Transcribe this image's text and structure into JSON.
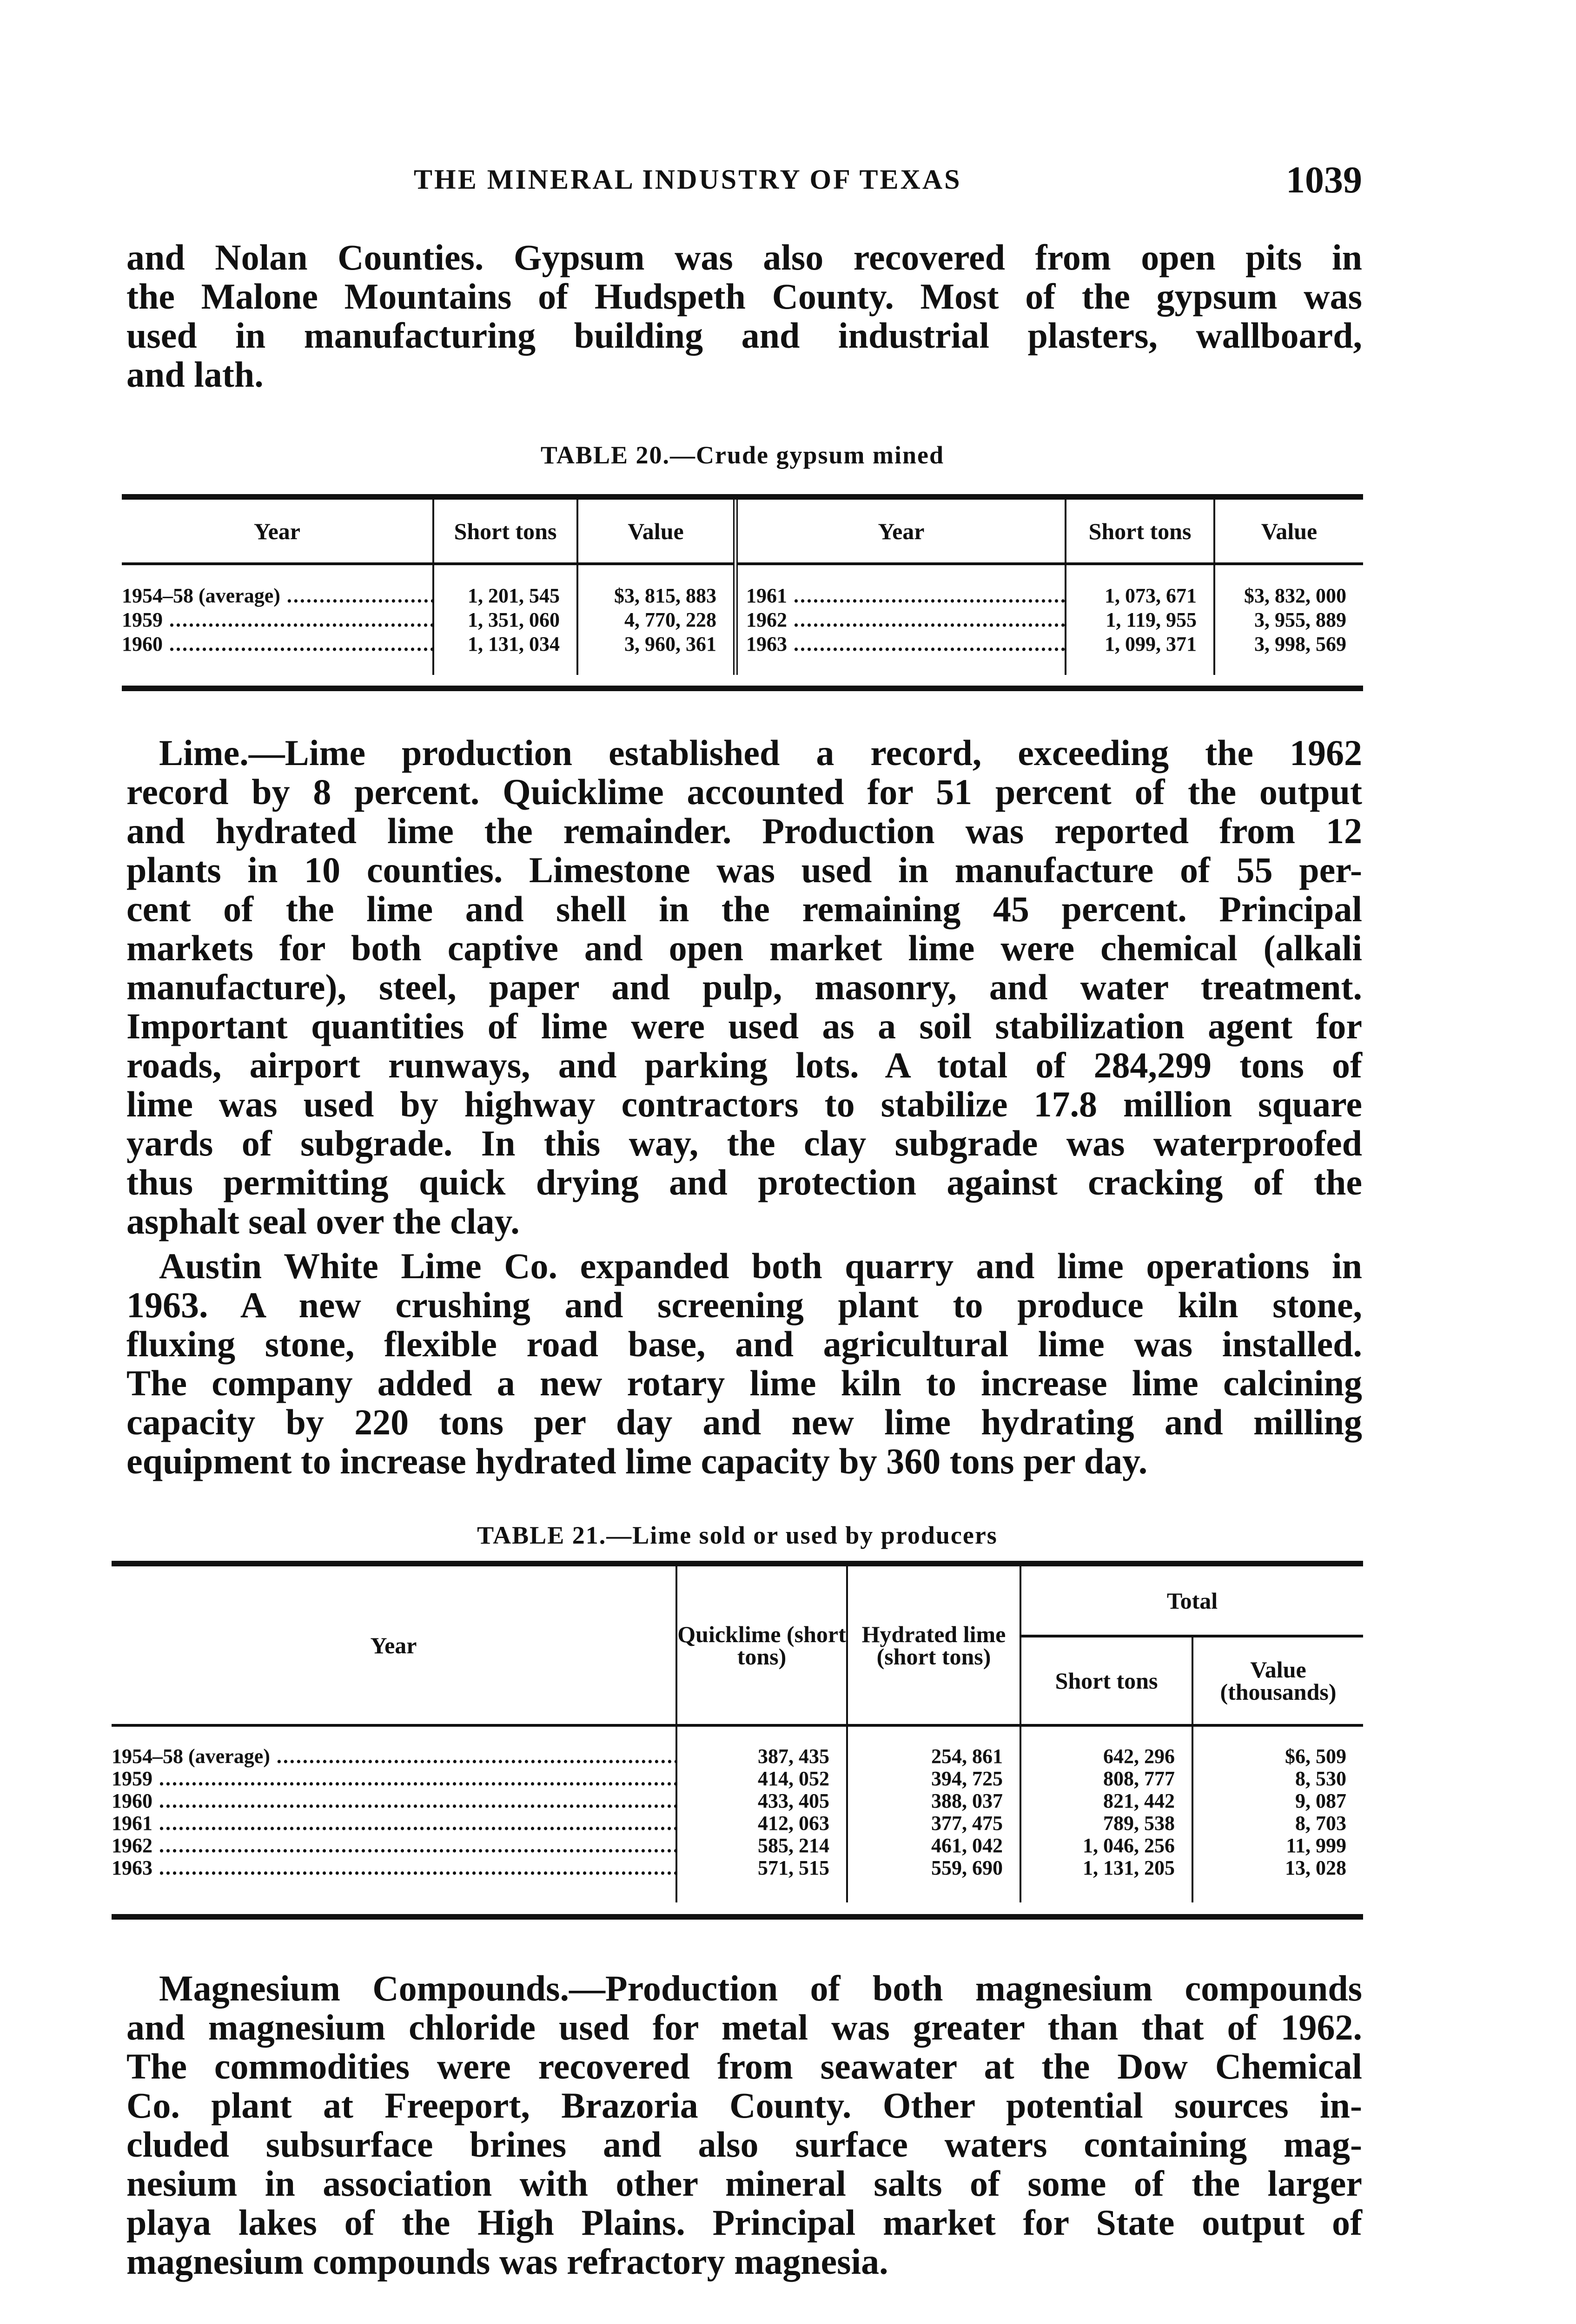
{
  "header": {
    "running_title": "THE MINERAL INDUSTRY OF TEXAS",
    "page_number": "1039"
  },
  "paragraphs": {
    "gypsum_end": {
      "lead": "",
      "lines": [
        "and Nolan Counties. Gypsum was also recovered from open pits in",
        "the Malone Mountains of Hudspeth County. Most of the gypsum was",
        "used in manufacturing building and industrial plasters, wallboard,",
        "and lath."
      ]
    },
    "lime": {
      "lead": "Lime.",
      "lines": [
        "—Lime production established a record, exceeding the 1962",
        "record by 8 percent. Quicklime accounted for 51 percent of the output",
        "and hydrated lime the remainder. Production was reported from 12",
        "plants in 10 counties. Limestone was used in manufacture of 55 per-",
        "cent of the lime and shell in the remaining 45 percent. Principal",
        "markets for both captive and open market lime were chemical (alkali",
        "manufacture), steel, paper and pulp, masonry, and water treatment.",
        "Important quantities of lime were used as a soil stabilization agent for",
        "roads, airport runways, and parking lots. A total of 284,299 tons of",
        "lime was used by highway contractors to stabilize 17.8 million square",
        "yards of subgrade. In this way, the clay subgrade was waterproofed",
        "thus permitting quick drying and protection against cracking of the",
        "asphalt seal over the clay."
      ]
    },
    "austin": {
      "lead": "",
      "lines": [
        "Austin White Lime Co. expanded both quarry and lime operations in",
        "1963. A new crushing and screening plant to produce kiln stone,",
        "fluxing stone, flexible road base, and agricultural lime was installed.",
        "The company added a new rotary lime kiln to increase lime calcining",
        "capacity by 220 tons per day and new lime hydrating and milling",
        "equipment to increase hydrated lime capacity by 360 tons per day."
      ]
    },
    "magnesium": {
      "lead": "Magnesium Compounds.",
      "lines": [
        "—Production of both magnesium compounds",
        "and magnesium chloride used for metal was greater than that of 1962.",
        "The commodities were recovered from seawater at the Dow Chemical",
        "Co. plant at Freeport, Brazoria County. Other potential sources in-",
        "cluded subsurface brines and also surface waters containing mag-",
        "nesium in association with other mineral salts of some of the larger",
        "playa lakes of the High Plains. Principal market for State output of",
        "magnesium compounds was refractory magnesia."
      ]
    }
  },
  "table20": {
    "title": "TABLE 20.—Crude gypsum mined",
    "headers": [
      "Year",
      "Short tons",
      "Value",
      "Year",
      "Short tons",
      "Value"
    ],
    "rows": [
      [
        "1954–58 (average)",
        "1, 201, 545",
        "$3, 815, 883",
        "1961",
        "1, 073, 671",
        "$3, 832, 000"
      ],
      [
        "1959",
        "1, 351, 060",
        "4, 770, 228",
        "1962",
        "1, 119, 955",
        "3, 955, 889"
      ],
      [
        "1960",
        "1, 131, 034",
        "3, 960, 361",
        "1963",
        "1, 099, 371",
        "3, 998, 569"
      ]
    ]
  },
  "table21": {
    "title": "TABLE 21.—Lime sold or used by producers",
    "headers": {
      "year": "Year",
      "quicklime": "Quicklime (short tons)",
      "hydrated": "Hydrated lime (short tons)",
      "total": "Total",
      "total_tons": "Short tons",
      "total_value": "Value (thousands)"
    },
    "rows": [
      [
        "1954–58 (average)",
        "387, 435",
        "254, 861",
        "642, 296",
        "$6, 509"
      ],
      [
        "1959",
        "414, 052",
        "394, 725",
        "808, 777",
        "8, 530"
      ],
      [
        "1960",
        "433, 405",
        "388, 037",
        "821, 442",
        "9, 087"
      ],
      [
        "1961",
        "412, 063",
        "377, 475",
        "789, 538",
        "8, 703"
      ],
      [
        "1962",
        "585, 214",
        "461, 042",
        "1, 046, 256",
        "11, 999"
      ],
      [
        "1963",
        "571, 515",
        "559, 690",
        "1, 131, 205",
        "13, 028"
      ]
    ]
  }
}
